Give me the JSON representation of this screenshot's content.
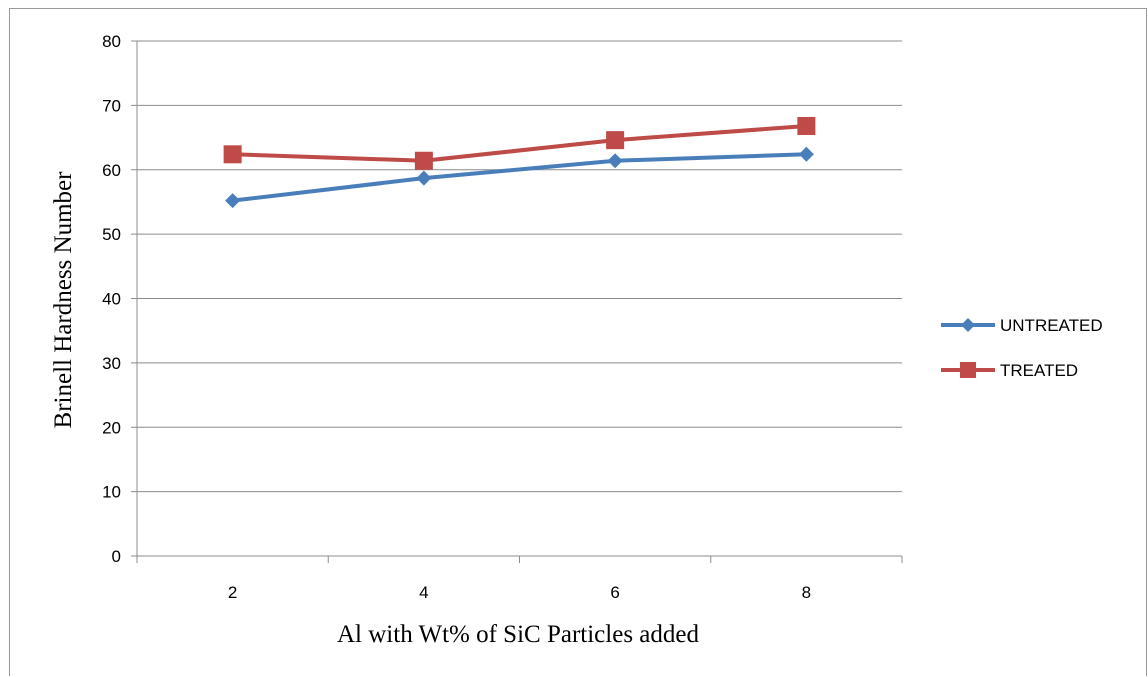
{
  "chart_data": {
    "type": "line",
    "categories": [
      "2",
      "4",
      "6",
      "8"
    ],
    "series": [
      {
        "name": "UNTREATED",
        "values": [
          55.2,
          58.7,
          61.4,
          62.4
        ],
        "color": "#4a7ebb",
        "marker": "diamond"
      },
      {
        "name": "TREATED",
        "values": [
          62.4,
          61.4,
          64.6,
          66.8
        ],
        "color": "#be4b48",
        "marker": "square"
      }
    ],
    "title": "",
    "xlabel": "Al with Wt% of SiC Particles added",
    "ylabel": "Brinell Hardness Number",
    "ylim": [
      0,
      80
    ],
    "yticks": [
      "0",
      "10",
      "20",
      "30",
      "40",
      "50",
      "60",
      "70",
      "80"
    ],
    "grid": "horizontal",
    "legend": "right"
  }
}
